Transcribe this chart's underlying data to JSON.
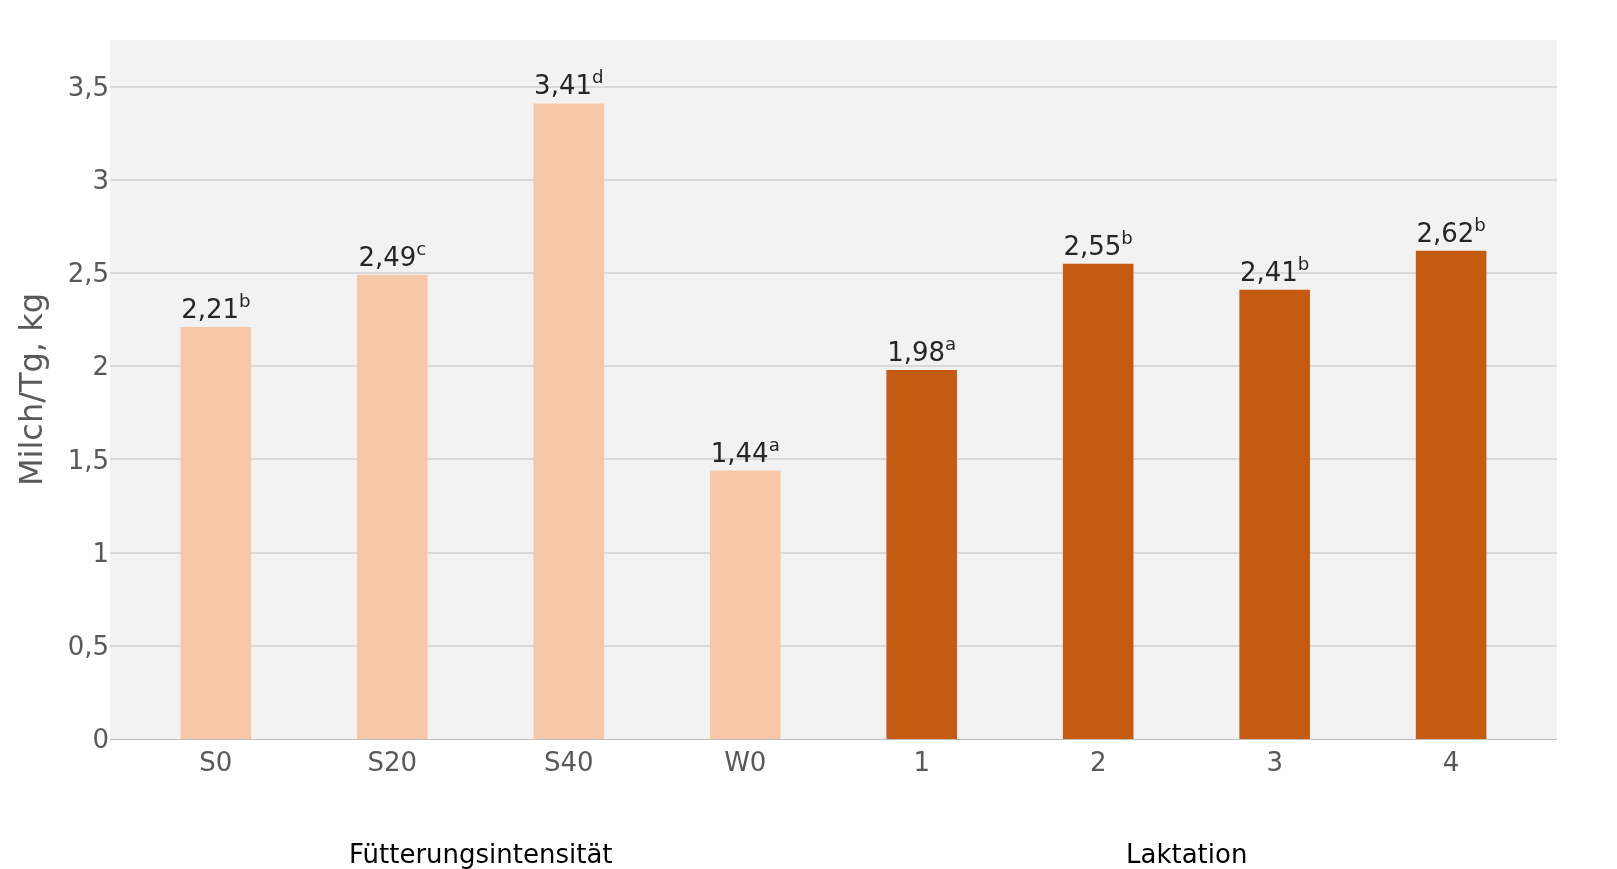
{
  "chart_data": {
    "type": "bar",
    "ylabel": "Milch/Tg, kg",
    "categories": [
      "S0",
      "S20",
      "S40",
      "W0",
      "1",
      "2",
      "3",
      "4"
    ],
    "values": [
      2.21,
      2.49,
      3.41,
      1.44,
      1.98,
      2.55,
      2.41,
      2.62
    ],
    "colors": [
      "#f7c8a8",
      "#f7c8a8",
      "#f7c8a8",
      "#f7c8a8",
      "#c55a11",
      "#c55a11",
      "#c55a11",
      "#c55a11"
    ],
    "value_labels": [
      "2,21$^{b}$",
      "2,49$^{c}$",
      "3,41$^{d}$",
      "1,44$^{a}$",
      "1,98$^{a}$",
      "2,55$^{b}$",
      "2,41$^{b}$",
      "2,62$^{b}$"
    ],
    "ylim": [
      0,
      3.75
    ],
    "yticks": [
      0,
      {
        "value": 0.5,
        "label": "0,5"
      },
      1,
      {
        "value": 1.5,
        "label": "1,5"
      },
      2,
      {
        "value": 2.5,
        "label": "2,5"
      },
      3,
      {
        "value": 3.5,
        "label": "3,5"
      }
    ],
    "grid": "y",
    "annotations": [
      "Fütterungsintensität",
      "Laktation"
    ]
  }
}
